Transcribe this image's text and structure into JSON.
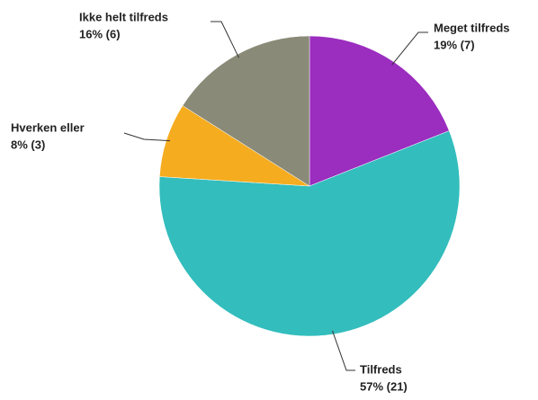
{
  "chart_data": {
    "type": "pie",
    "categories": [
      "Meget tilfreds",
      "Tilfreds",
      "Hverken eller",
      "Ikke helt tilfreds"
    ],
    "values": [
      19,
      57,
      8,
      16
    ],
    "value_labels": [
      "19% (7)",
      "57% (21)",
      "8% (3)",
      "16% (6)"
    ],
    "colors": [
      "#9b2dbf",
      "#33bdbd",
      "#f5ac1f",
      "#8a8a78"
    ]
  }
}
